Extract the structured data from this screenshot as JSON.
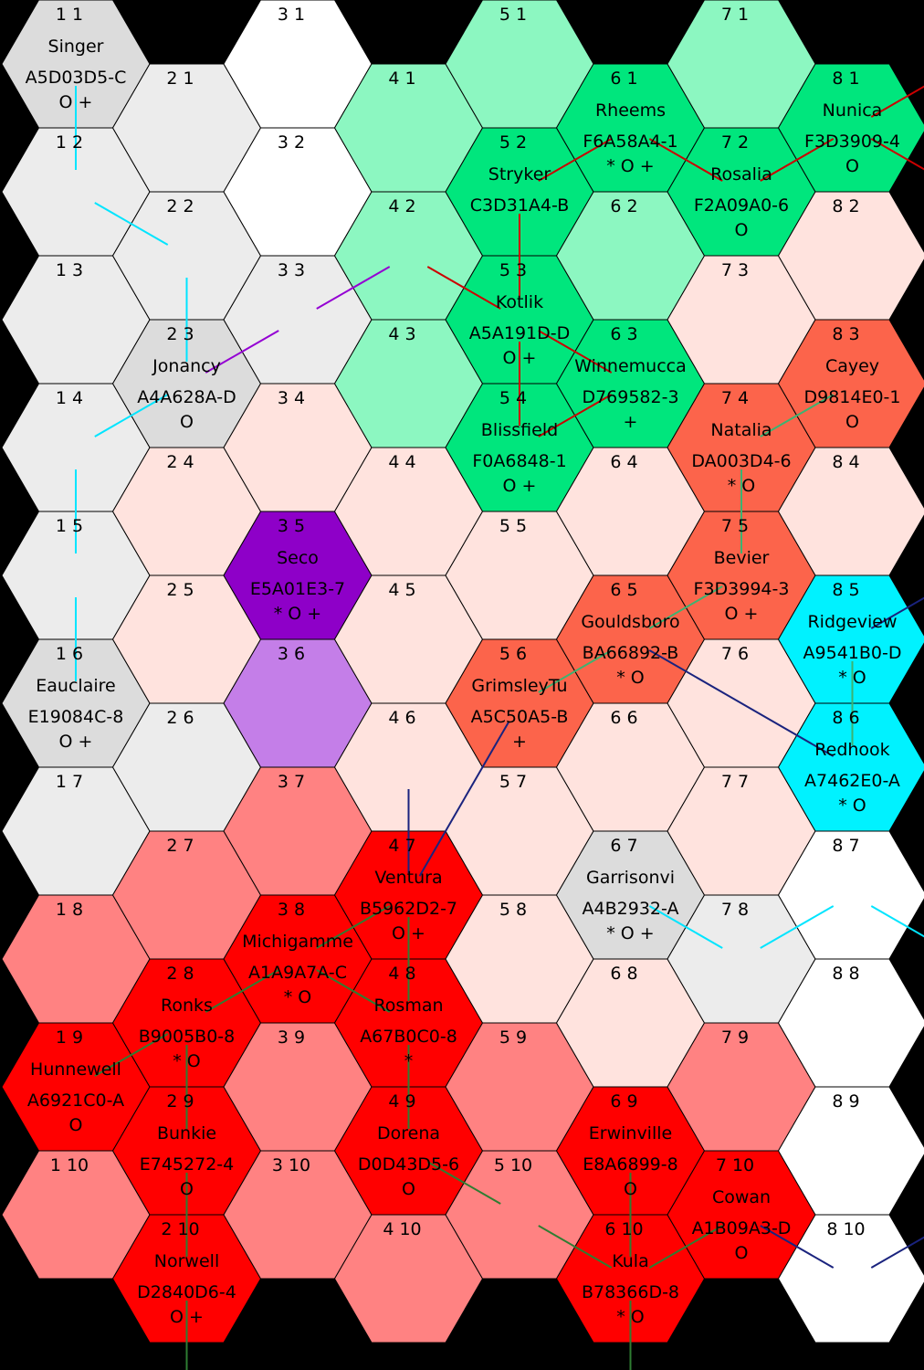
{
  "title": "",
  "colors": {
    "white": "#ffffff",
    "lightgray": "#ececec",
    "gray": "#dcdcdc",
    "mint": "#8cf7c1",
    "green": "#00e67d",
    "pink": "#ffe3de",
    "salmon": "#fc644b",
    "rose": "#ff8282",
    "red": "#ff0000",
    "purple": "#8e00c8",
    "lavender": "#c47ee8",
    "cyan": "#00f2ff"
  },
  "hexes": [
    {
      "col": 1,
      "row": 1,
      "label": "1 1",
      "color": "gray",
      "name": "Singer",
      "code": "A5D03D5-C",
      "flags": "O +"
    },
    {
      "col": 1,
      "row": 2,
      "label": "1 2",
      "color": "lightgray"
    },
    {
      "col": 1,
      "row": 3,
      "label": "1 3",
      "color": "lightgray"
    },
    {
      "col": 1,
      "row": 4,
      "label": "1 4",
      "color": "lightgray"
    },
    {
      "col": 1,
      "row": 5,
      "label": "1 5",
      "color": "lightgray"
    },
    {
      "col": 1,
      "row": 6,
      "label": "1 6",
      "color": "gray",
      "name": "Eauclaire",
      "code": "E19084C-8",
      "flags": "O +"
    },
    {
      "col": 1,
      "row": 7,
      "label": "1 7",
      "color": "lightgray"
    },
    {
      "col": 1,
      "row": 8,
      "label": "1 8",
      "color": "rose"
    },
    {
      "col": 1,
      "row": 9,
      "label": "1 9",
      "color": "red",
      "name": "Hunnewell",
      "code": "A6921C0-A",
      "flags": "O"
    },
    {
      "col": 1,
      "row": 10,
      "label": "1 10",
      "color": "rose"
    },
    {
      "col": 2,
      "row": 1,
      "label": "2 1",
      "color": "lightgray"
    },
    {
      "col": 2,
      "row": 2,
      "label": "2 2",
      "color": "lightgray"
    },
    {
      "col": 2,
      "row": 3,
      "label": "2 3",
      "color": "gray",
      "name": "Jonancy",
      "code": "A4A628A-D",
      "flags": "O"
    },
    {
      "col": 2,
      "row": 4,
      "label": "2 4",
      "color": "pink"
    },
    {
      "col": 2,
      "row": 5,
      "label": "2 5",
      "color": "pink"
    },
    {
      "col": 2,
      "row": 6,
      "label": "2 6",
      "color": "lightgray"
    },
    {
      "col": 2,
      "row": 7,
      "label": "2 7",
      "color": "rose"
    },
    {
      "col": 2,
      "row": 8,
      "label": "2 8",
      "color": "red",
      "name": "Ronks",
      "code": "B9005B0-8",
      "flags": "* O"
    },
    {
      "col": 2,
      "row": 9,
      "label": "2 9",
      "color": "red",
      "name": "Bunkie",
      "code": "E745272-4",
      "flags": "O"
    },
    {
      "col": 2,
      "row": 10,
      "label": "2 10",
      "color": "red",
      "name": "Norwell",
      "code": "D2840D6-4",
      "flags": "O +"
    },
    {
      "col": 3,
      "row": 1,
      "label": "3 1",
      "color": "white"
    },
    {
      "col": 3,
      "row": 2,
      "label": "3 2",
      "color": "white"
    },
    {
      "col": 3,
      "row": 3,
      "label": "3 3",
      "color": "lightgray"
    },
    {
      "col": 3,
      "row": 4,
      "label": "3 4",
      "color": "pink"
    },
    {
      "col": 3,
      "row": 5,
      "label": "3 5",
      "color": "purple",
      "name": "Seco",
      "code": "E5A01E3-7",
      "flags": "* O +"
    },
    {
      "col": 3,
      "row": 6,
      "label": "3 6",
      "color": "lavender"
    },
    {
      "col": 3,
      "row": 7,
      "label": "3 7",
      "color": "rose"
    },
    {
      "col": 3,
      "row": 8,
      "label": "3 8",
      "color": "red",
      "name": "Michigamme",
      "code": "A1A9A7A-C",
      "flags": "* O"
    },
    {
      "col": 3,
      "row": 9,
      "label": "3 9",
      "color": "rose"
    },
    {
      "col": 3,
      "row": 10,
      "label": "3 10",
      "color": "rose"
    },
    {
      "col": 4,
      "row": 1,
      "label": "4 1",
      "color": "mint"
    },
    {
      "col": 4,
      "row": 2,
      "label": "4 2",
      "color": "mint"
    },
    {
      "col": 4,
      "row": 3,
      "label": "4 3",
      "color": "mint"
    },
    {
      "col": 4,
      "row": 4,
      "label": "4 4",
      "color": "pink"
    },
    {
      "col": 4,
      "row": 5,
      "label": "4 5",
      "color": "pink"
    },
    {
      "col": 4,
      "row": 6,
      "label": "4 6",
      "color": "pink"
    },
    {
      "col": 4,
      "row": 7,
      "label": "4 7",
      "color": "red",
      "name": "Ventura",
      "code": "B5962D2-7",
      "flags": "O +"
    },
    {
      "col": 4,
      "row": 8,
      "label": "4 8",
      "color": "red",
      "name": "Rosman",
      "code": "A67B0C0-8",
      "flags": "*"
    },
    {
      "col": 4,
      "row": 9,
      "label": "4 9",
      "color": "red",
      "name": "Dorena",
      "code": "D0D43D5-6",
      "flags": "O"
    },
    {
      "col": 4,
      "row": 10,
      "label": "4 10",
      "color": "rose"
    },
    {
      "col": 5,
      "row": 1,
      "label": "5 1",
      "color": "mint"
    },
    {
      "col": 5,
      "row": 2,
      "label": "5 2",
      "color": "green",
      "name": "Stryker",
      "code": "C3D31A4-B",
      "flags": ""
    },
    {
      "col": 5,
      "row": 3,
      "label": "5 3",
      "color": "green",
      "name": "Kotlik",
      "code": "A5A191D-D",
      "flags": "O +"
    },
    {
      "col": 5,
      "row": 4,
      "label": "5 4",
      "color": "green",
      "name": "Blissfield",
      "code": "F0A6848-1",
      "flags": "O +"
    },
    {
      "col": 5,
      "row": 5,
      "label": "5 5",
      "color": "pink"
    },
    {
      "col": 5,
      "row": 6,
      "label": "5 6",
      "color": "salmon",
      "name": "GrimsleyTu",
      "code": "A5C50A5-B",
      "flags": "+"
    },
    {
      "col": 5,
      "row": 7,
      "label": "5 7",
      "color": "pink"
    },
    {
      "col": 5,
      "row": 8,
      "label": "5 8",
      "color": "pink"
    },
    {
      "col": 5,
      "row": 9,
      "label": "5 9",
      "color": "rose"
    },
    {
      "col": 5,
      "row": 10,
      "label": "5 10",
      "color": "rose"
    },
    {
      "col": 6,
      "row": 1,
      "label": "6 1",
      "color": "green",
      "name": "Rheems",
      "code": "F6A58A4-1",
      "flags": "* O +"
    },
    {
      "col": 6,
      "row": 2,
      "label": "6 2",
      "color": "mint"
    },
    {
      "col": 6,
      "row": 3,
      "label": "6 3",
      "color": "green",
      "name": "Winnemucca",
      "code": "D769582-3",
      "flags": "+"
    },
    {
      "col": 6,
      "row": 4,
      "label": "6 4",
      "color": "pink"
    },
    {
      "col": 6,
      "row": 5,
      "label": "6 5",
      "color": "salmon",
      "name": "Gouldsboro",
      "code": "BA66892-B",
      "flags": "* O"
    },
    {
      "col": 6,
      "row": 6,
      "label": "6 6",
      "color": "pink"
    },
    {
      "col": 6,
      "row": 7,
      "label": "6 7",
      "color": "gray",
      "name": "Garrisonvi",
      "code": "A4B2932-A",
      "flags": "* O +"
    },
    {
      "col": 6,
      "row": 8,
      "label": "6 8",
      "color": "pink"
    },
    {
      "col": 6,
      "row": 9,
      "label": "6 9",
      "color": "red",
      "name": "Erwinville",
      "code": "E8A6899-8",
      "flags": "O"
    },
    {
      "col": 6,
      "row": 10,
      "label": "6 10",
      "color": "red",
      "name": "Kula",
      "code": "B78366D-8",
      "flags": "* O"
    },
    {
      "col": 7,
      "row": 1,
      "label": "7 1",
      "color": "mint"
    },
    {
      "col": 7,
      "row": 2,
      "label": "7 2",
      "color": "green",
      "name": "Rosalia",
      "code": "F2A09A0-6",
      "flags": "O"
    },
    {
      "col": 7,
      "row": 3,
      "label": "7 3",
      "color": "pink"
    },
    {
      "col": 7,
      "row": 4,
      "label": "7 4",
      "color": "salmon",
      "name": "Natalia",
      "code": "DA003D4-6",
      "flags": "* O"
    },
    {
      "col": 7,
      "row": 5,
      "label": "7 5",
      "color": "salmon",
      "name": "Bevier",
      "code": "F3D3994-3",
      "flags": "O +"
    },
    {
      "col": 7,
      "row": 6,
      "label": "7 6",
      "color": "pink"
    },
    {
      "col": 7,
      "row": 7,
      "label": "7 7",
      "color": "pink"
    },
    {
      "col": 7,
      "row": 8,
      "label": "7 8",
      "color": "lightgray"
    },
    {
      "col": 7,
      "row": 9,
      "label": "7 9",
      "color": "rose"
    },
    {
      "col": 7,
      "row": 10,
      "label": "7 10",
      "color": "red",
      "name": "Cowan",
      "code": "A1B09A3-D",
      "flags": "O"
    },
    {
      "col": 8,
      "row": 1,
      "label": "8 1",
      "color": "green",
      "name": "Nunica",
      "code": "F3D3909-4",
      "flags": "O"
    },
    {
      "col": 8,
      "row": 2,
      "label": "8 2",
      "color": "pink"
    },
    {
      "col": 8,
      "row": 3,
      "label": "8 3",
      "color": "salmon",
      "name": "Cayey",
      "code": "D9814E0-1",
      "flags": "O"
    },
    {
      "col": 8,
      "row": 4,
      "label": "8 4",
      "color": "pink"
    },
    {
      "col": 8,
      "row": 5,
      "label": "8 5",
      "color": "cyan",
      "name": "Ridgeview",
      "code": "A9541B0-D",
      "flags": "* O"
    },
    {
      "col": 8,
      "row": 6,
      "label": "8 6",
      "color": "cyan",
      "name": "Redhook",
      "code": "A7462E0-A",
      "flags": "* O"
    },
    {
      "col": 8,
      "row": 7,
      "label": "8 7",
      "color": "white"
    },
    {
      "col": 8,
      "row": 8,
      "label": "8 8",
      "color": "white"
    },
    {
      "col": 8,
      "row": 9,
      "label": "8 9",
      "color": "white"
    },
    {
      "col": 8,
      "row": 10,
      "label": "8 10",
      "color": "white"
    }
  ],
  "routes": [
    {
      "color": "#00e5ff",
      "from": [
        1,
        1
      ],
      "to": [
        1,
        2
      ]
    },
    {
      "color": "#00e5ff",
      "from": [
        1,
        2
      ],
      "to": [
        2,
        2
      ]
    },
    {
      "color": "#00e5ff",
      "from": [
        2,
        2
      ],
      "to": [
        2,
        3
      ]
    },
    {
      "color": "#00e5ff",
      "from": [
        2,
        3
      ],
      "to": [
        1,
        4
      ]
    },
    {
      "color": "#00e5ff",
      "from": [
        1,
        4
      ],
      "to": [
        1,
        5
      ]
    },
    {
      "color": "#00e5ff",
      "from": [
        1,
        5
      ],
      "to": [
        1,
        6
      ]
    },
    {
      "color": "#00e5ff",
      "from": [
        6,
        7
      ],
      "to": [
        7,
        8
      ]
    },
    {
      "color": "#00e5ff",
      "from": [
        7,
        8
      ],
      "to": [
        8,
        7
      ]
    },
    {
      "color": "#00e5ff",
      "from": [
        8,
        7
      ],
      "to": [
        9,
        8
      ]
    },
    {
      "color": "#9400d3",
      "from": [
        2,
        3
      ],
      "to": [
        3,
        3
      ]
    },
    {
      "color": "#9400d3",
      "from": [
        3,
        3
      ],
      "to": [
        4,
        2
      ]
    },
    {
      "color": "#cc0000",
      "from": [
        4,
        2
      ],
      "to": [
        5,
        3
      ]
    },
    {
      "color": "#cc0000",
      "from": [
        5,
        3
      ],
      "to": [
        5,
        2
      ]
    },
    {
      "color": "#cc0000",
      "from": [
        5,
        2
      ],
      "to": [
        6,
        1
      ]
    },
    {
      "color": "#cc0000",
      "from": [
        6,
        1
      ],
      "to": [
        7,
        2
      ]
    },
    {
      "color": "#cc0000",
      "from": [
        7,
        2
      ],
      "to": [
        8,
        1
      ]
    },
    {
      "color": "#cc0000",
      "from": [
        8,
        1
      ],
      "to": [
        9,
        1
      ]
    },
    {
      "color": "#cc0000",
      "from": [
        8,
        1
      ],
      "to": [
        9,
        2
      ]
    },
    {
      "color": "#cc0000",
      "from": [
        5,
        3
      ],
      "to": [
        6,
        3
      ]
    },
    {
      "color": "#cc0000",
      "from": [
        5,
        3
      ],
      "to": [
        5,
        4
      ]
    },
    {
      "color": "#cc0000",
      "from": [
        5,
        4
      ],
      "to": [
        6,
        3
      ]
    },
    {
      "color": "#3cb371",
      "from": [
        8,
        3
      ],
      "to": [
        7,
        4
      ]
    },
    {
      "color": "#3cb371",
      "from": [
        7,
        4
      ],
      "to": [
        7,
        5
      ]
    },
    {
      "color": "#3cb371",
      "from": [
        7,
        5
      ],
      "to": [
        6,
        5
      ]
    },
    {
      "color": "#3cb371",
      "from": [
        6,
        5
      ],
      "to": [
        5,
        6
      ]
    },
    {
      "color": "#3cb371",
      "from": [
        8,
        5
      ],
      "to": [
        8,
        6
      ]
    },
    {
      "color": "#1a237e",
      "from": [
        6,
        5
      ],
      "to": [
        8,
        6
      ]
    },
    {
      "color": "#1a237e",
      "from": [
        8,
        5
      ],
      "to": [
        9,
        5
      ]
    },
    {
      "color": "#1a237e",
      "from": [
        5,
        6
      ],
      "to": [
        4,
        7
      ]
    },
    {
      "color": "#1a237e",
      "from": [
        4,
        7
      ],
      "to": [
        4,
        6
      ]
    },
    {
      "color": "#1a237e",
      "from": [
        7,
        10
      ],
      "to": [
        8,
        10
      ]
    },
    {
      "color": "#1a237e",
      "from": [
        8,
        10
      ],
      "to": [
        9,
        10
      ]
    },
    {
      "color": "#2e7d32",
      "from": [
        4,
        7
      ],
      "to": [
        3,
        8
      ]
    },
    {
      "color": "#2e7d32",
      "from": [
        4,
        7
      ],
      "to": [
        4,
        8
      ]
    },
    {
      "color": "#2e7d32",
      "from": [
        3,
        8
      ],
      "to": [
        4,
        8
      ]
    },
    {
      "color": "#2e7d32",
      "from": [
        3,
        8
      ],
      "to": [
        2,
        8
      ]
    },
    {
      "color": "#2e7d32",
      "from": [
        2,
        8
      ],
      "to": [
        1,
        9
      ]
    },
    {
      "color": "#2e7d32",
      "from": [
        2,
        8
      ],
      "to": [
        2,
        9
      ]
    },
    {
      "color": "#2e7d32",
      "from": [
        2,
        9
      ],
      "to": [
        2,
        10
      ]
    },
    {
      "color": "#2e7d32",
      "from": [
        2,
        10
      ],
      "to": [
        2,
        11
      ]
    },
    {
      "color": "#2e7d32",
      "from": [
        4,
        8
      ],
      "to": [
        4,
        9
      ]
    },
    {
      "color": "#2e7d32",
      "from": [
        4,
        9
      ],
      "to": [
        5,
        10
      ]
    },
    {
      "color": "#2e7d32",
      "from": [
        5,
        10
      ],
      "to": [
        6,
        10
      ]
    },
    {
      "color": "#2e7d32",
      "from": [
        6,
        9
      ],
      "to": [
        6,
        10
      ]
    },
    {
      "color": "#2e7d32",
      "from": [
        6,
        10
      ],
      "to": [
        7,
        10
      ]
    },
    {
      "color": "#2e7d32",
      "from": [
        6,
        10
      ],
      "to": [
        6,
        11
      ]
    }
  ]
}
